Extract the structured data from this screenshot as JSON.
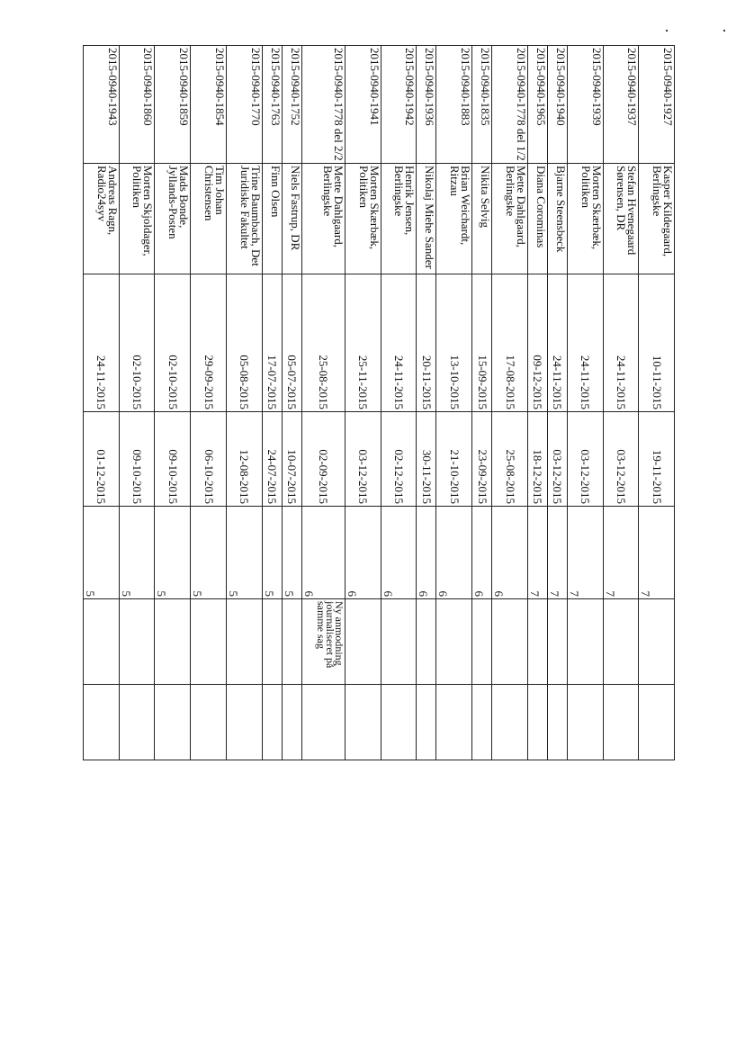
{
  "rows": [
    {
      "case": "2015-0940-1927",
      "name": "Kasper Kildegaard, Berlingske",
      "date1": "10-11-2015",
      "date2": "19-11-2015",
      "num": "7",
      "note": ""
    },
    {
      "case": "2015-0940-1937",
      "name": "Stefan Hvenegaard Sørensen, DR",
      "date1": "24-11-2015",
      "date2": "03-12-2015",
      "num": "7",
      "note": ""
    },
    {
      "case": "2015-0940-1939",
      "name": "Morten Skærbæk, Politiken",
      "date1": "24-11-2015",
      "date2": "03-12-2015",
      "num": "7",
      "note": ""
    },
    {
      "case": "2015-0940-1940",
      "name": "Bjarne Steensbeck",
      "date1": "24-11-2015",
      "date2": "03-12-2015",
      "num": "7",
      "note": ""
    },
    {
      "case": "2015-0940-1965",
      "name": "Diana Corominas",
      "date1": "09-12-2015",
      "date2": "18-12-2015",
      "num": "7",
      "note": ""
    },
    {
      "case": "2015-0940-1778 del 1/2",
      "name": "Mette Dahlgaard, Berlingske",
      "date1": "17-08-2015",
      "date2": "25-08-2015",
      "num": "6",
      "note": ""
    },
    {
      "case": "2015-0940-1835",
      "name": "Nikita Selvig",
      "date1": "15-09-2015",
      "date2": "23-09-2015",
      "num": "6",
      "note": ""
    },
    {
      "case": "2015-0940-1883",
      "name": "Brian Weichardt, Ritzau",
      "date1": "13-10-2015",
      "date2": "21-10-2015",
      "num": "6",
      "note": ""
    },
    {
      "case": "2015-0940-1936",
      "name": "Nikolaj Miehe Sander",
      "date1": "20-11-2015",
      "date2": "30-11-2015",
      "num": "6",
      "note": ""
    },
    {
      "case": "2015-0940-1942",
      "name": "Henrik Jensen, Berlingske",
      "date1": "24-11-2015",
      "date2": "02-12-2015",
      "num": "6",
      "note": ""
    },
    {
      "case": "2015-0940-1941",
      "name": "Morten Skærbæk, Politiken",
      "date1": "25-11-2015",
      "date2": "03-12-2015",
      "num": "6",
      "note": ""
    },
    {
      "case": "2015-0940-1778 del 2/2",
      "name": "Mette Dahlgaard, Berlingske",
      "date1": "25-08-2015",
      "date2": "02-09-2015",
      "num": "6",
      "note": "Ny anmodning journaliseret på samme sag"
    },
    {
      "case": "2015-0940-1752",
      "name": "Niels Fastrup, DR",
      "date1": "05-07-2015",
      "date2": "10-07-2015",
      "num": "5",
      "note": ""
    },
    {
      "case": "2015-0940-1763",
      "name": "Finn Olsen",
      "date1": "17-07-2015",
      "date2": "24-07-2015",
      "num": "5",
      "note": ""
    },
    {
      "case": "2015-0940-1770",
      "name": "Trine Baumbach, Det Juridiske Fakultet",
      "date1": "05-08-2015",
      "date2": "12-08-2015",
      "num": "5",
      "note": ""
    },
    {
      "case": "2015-0940-1854",
      "name": "Tim Johan Christensen",
      "date1": "29-09-2015",
      "date2": "06-10-2015",
      "num": "5",
      "note": ""
    },
    {
      "case": "2015-0940-1859",
      "name": "Mads Bonde, Jyllands-Posten",
      "date1": "02-10-2015",
      "date2": "09-10-2015",
      "num": "5",
      "note": ""
    },
    {
      "case": "2015-0940-1860",
      "name": "Morten Skjoldager, Politiken",
      "date1": "02-10-2015",
      "date2": "09-10-2015",
      "num": "5",
      "note": ""
    },
    {
      "case": "2015-0940-1943",
      "name": "Andreas Ragn, Radio24syv",
      "date1": "24-11-2015",
      "date2": "01-12-2015",
      "num": "5",
      "note": ""
    }
  ]
}
